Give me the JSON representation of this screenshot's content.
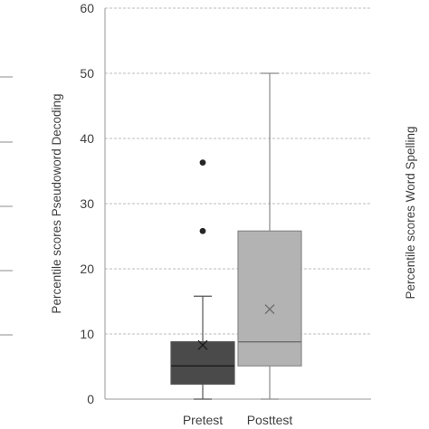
{
  "chart_data": {
    "type": "box",
    "ylabel": "Percentile scores Pseudoword Decoding",
    "right_axis_label": "Percentile scores Word Spelling",
    "ylim": [
      0,
      60
    ],
    "yticks": [
      0,
      10,
      20,
      30,
      40,
      50,
      60
    ],
    "grid": true,
    "categories": [
      "Pretest",
      "Posttest"
    ],
    "series": [
      {
        "category": "Pretest",
        "min": 0,
        "q1": 2.3,
        "median": 5.1,
        "q3": 8.8,
        "max": 15.8,
        "mean": 8.3,
        "outliers": [
          25.8,
          36.3
        ],
        "color": "#4a4a4a"
      },
      {
        "category": "Posttest",
        "min": 0,
        "q1": 5.1,
        "median": 8.8,
        "q3": 25.8,
        "max": 50,
        "mean": 13.8,
        "outliers": [],
        "color": "#b3b3b3"
      }
    ]
  }
}
